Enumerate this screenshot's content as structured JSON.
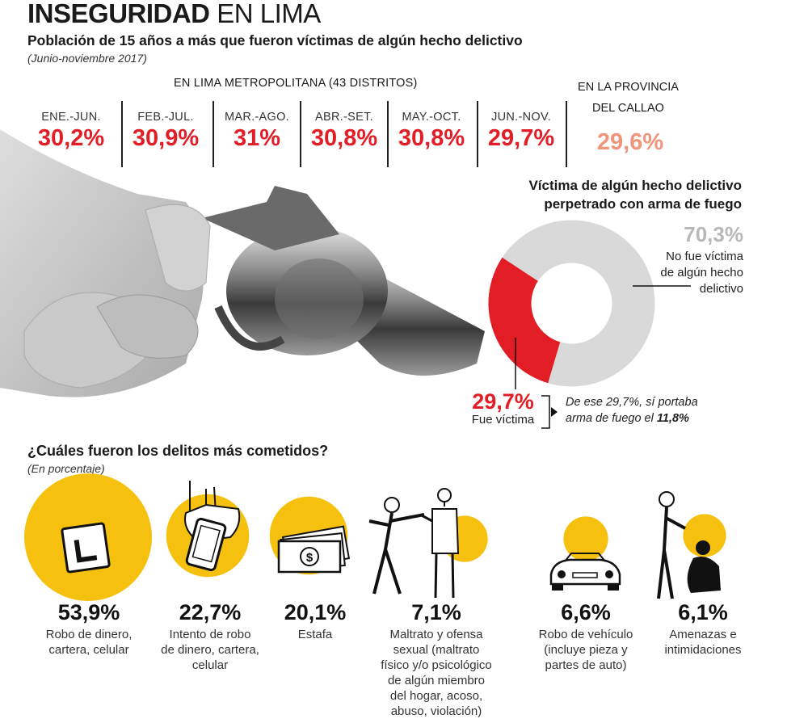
{
  "header": {
    "title_bold": "INSEGURIDAD",
    "title_light": "EN LIMA",
    "subtitle": "Población de 15 años a más que fueron víctimas de algún hecho delictivo",
    "period": "(Junio-noviembre 2017)"
  },
  "lima": {
    "header": "EN LIMA METROPOLITANA (43 DISTRITOS)",
    "columns": [
      {
        "label": "ENE.-JUN.",
        "value": "30,2%"
      },
      {
        "label": "FEB.-JUL.",
        "value": "30,9%"
      },
      {
        "label": "MAR.-AGO.",
        "value": "31%"
      },
      {
        "label": "ABR.-SET.",
        "value": "30,8%"
      },
      {
        "label": "MAY.-OCT.",
        "value": "30,8%"
      },
      {
        "label": "JUN.-NOV.",
        "value": "29,7%"
      }
    ]
  },
  "callao": {
    "header_line1": "EN LA PROVINCIA",
    "header_line2": "DEL CALLAO",
    "value": "29,6%"
  },
  "donut": {
    "title_line1": "Víctima de algún hecho delictivo",
    "title_line2": "perpetrado con arma de fuego",
    "no_victim_pct": "70,3%",
    "no_victim_label_1": "No fue víctima",
    "no_victim_label_2": "de algún hecho",
    "no_victim_label_3": "delictivo",
    "victim_pct": "29,7%",
    "victim_label": "Fue víctima",
    "note_1": "De ese 29,7%, sí portaba",
    "note_2": "arma de fuego el",
    "note_bold": "11,8%"
  },
  "crimes": {
    "title": "¿Cuáles fueron los delitos más cometidos?",
    "subtitle": "(En porcentaje)"
  },
  "colors": {
    "red": "#e31d26",
    "callao": "#f0947b",
    "gray": "#d9d9d9",
    "yellow": "#f6c10e"
  },
  "chart_data": [
    {
      "type": "table",
      "title": "EN LIMA METROPOLITANA (43 DISTRITOS)",
      "categories": [
        "ENE.-JUN.",
        "FEB.-JUL.",
        "MAR.-AGO.",
        "ABR.-SET.",
        "MAY.-OCT.",
        "JUN.-NOV."
      ],
      "values": [
        30.2,
        30.9,
        31,
        30.8,
        30.8,
        29.7
      ]
    },
    {
      "type": "pie",
      "title": "Víctima de algún hecho delictivo perpetrado con arma de fuego",
      "categories": [
        "No fue víctima de algún hecho delictivo",
        "Fue víctima"
      ],
      "values": [
        70.3,
        29.7
      ]
    },
    {
      "type": "bar",
      "title": "¿Cuáles fueron los delitos más cometidos?",
      "categories": [
        "Robo de dinero, cartera, celular",
        "Intento de robo de dinero, cartera, celular",
        "Estafa",
        "Maltrato y ofensa sexual (maltrato físico y/o psicológico de algún miembro del hogar, acoso, abuso, violación)",
        "Robo de vehículo (incluye pieza y partes de auto)",
        "Amenazas e intimidaciones"
      ],
      "values": [
        53.9,
        22.7,
        20.1,
        7.1,
        6.6,
        6.1
      ],
      "value_labels": [
        "53,9%",
        "22,7%",
        "20,1%",
        "7,1%",
        "6,6%",
        "6,1%"
      ],
      "label_lines": [
        [
          "Robo de dinero,",
          "cartera, celular"
        ],
        [
          "Intento de robo",
          "de dinero, cartera,",
          "celular"
        ],
        [
          "Estafa"
        ],
        [
          "Maltrato y ofensa",
          "sexual (maltrato",
          "físico y/o psicológico",
          "de algún miembro",
          "del hogar, acoso,",
          "abuso, violación)"
        ],
        [
          "Robo de vehículo",
          "(incluye pieza y",
          "partes de auto)"
        ],
        [
          "Amenazas e",
          "intimidaciones"
        ]
      ]
    }
  ]
}
